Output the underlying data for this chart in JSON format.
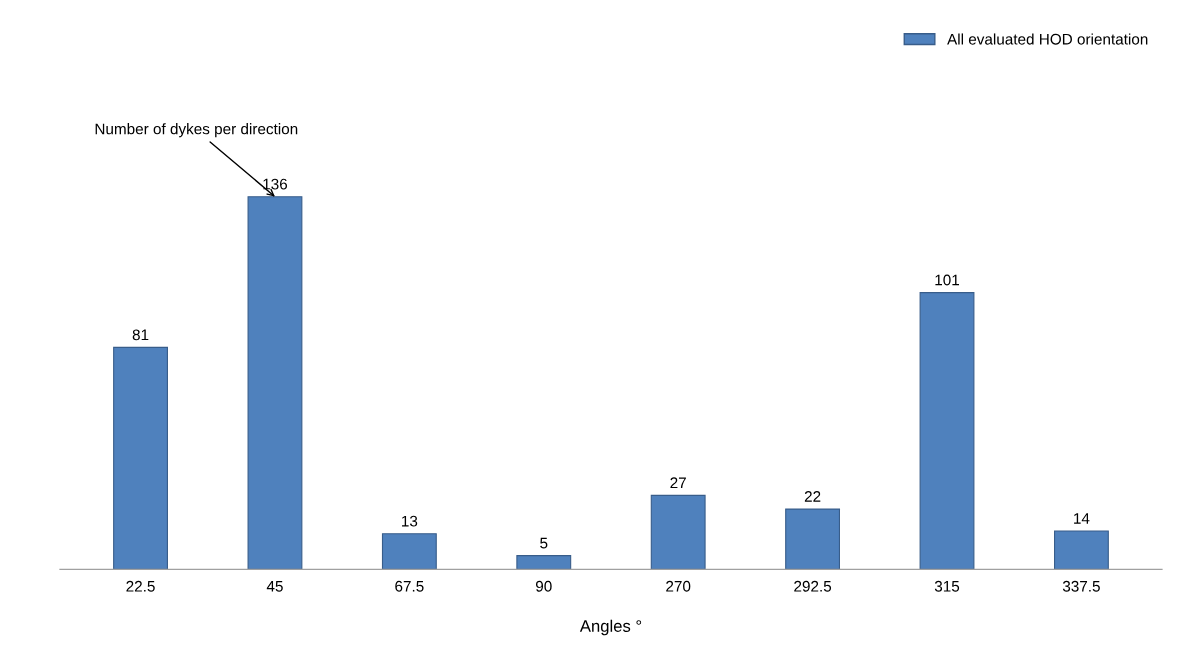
{
  "chart_data": {
    "type": "bar",
    "xlabel": "Angles °",
    "categories": [
      "22.5",
      "45",
      "67.5",
      "90",
      "270",
      "292.5",
      "315",
      "337.5"
    ],
    "series": [
      {
        "name": "All evaluated HOD orientation",
        "color": "#4f81bd",
        "values": [
          81,
          136,
          13,
          5,
          27,
          22,
          101,
          14
        ]
      }
    ],
    "data_labels": true,
    "legend": "top right",
    "grid": false,
    "annotations": [
      {
        "text": "Number of dykes per direction",
        "x": "45",
        "y": 136
      }
    ]
  }
}
